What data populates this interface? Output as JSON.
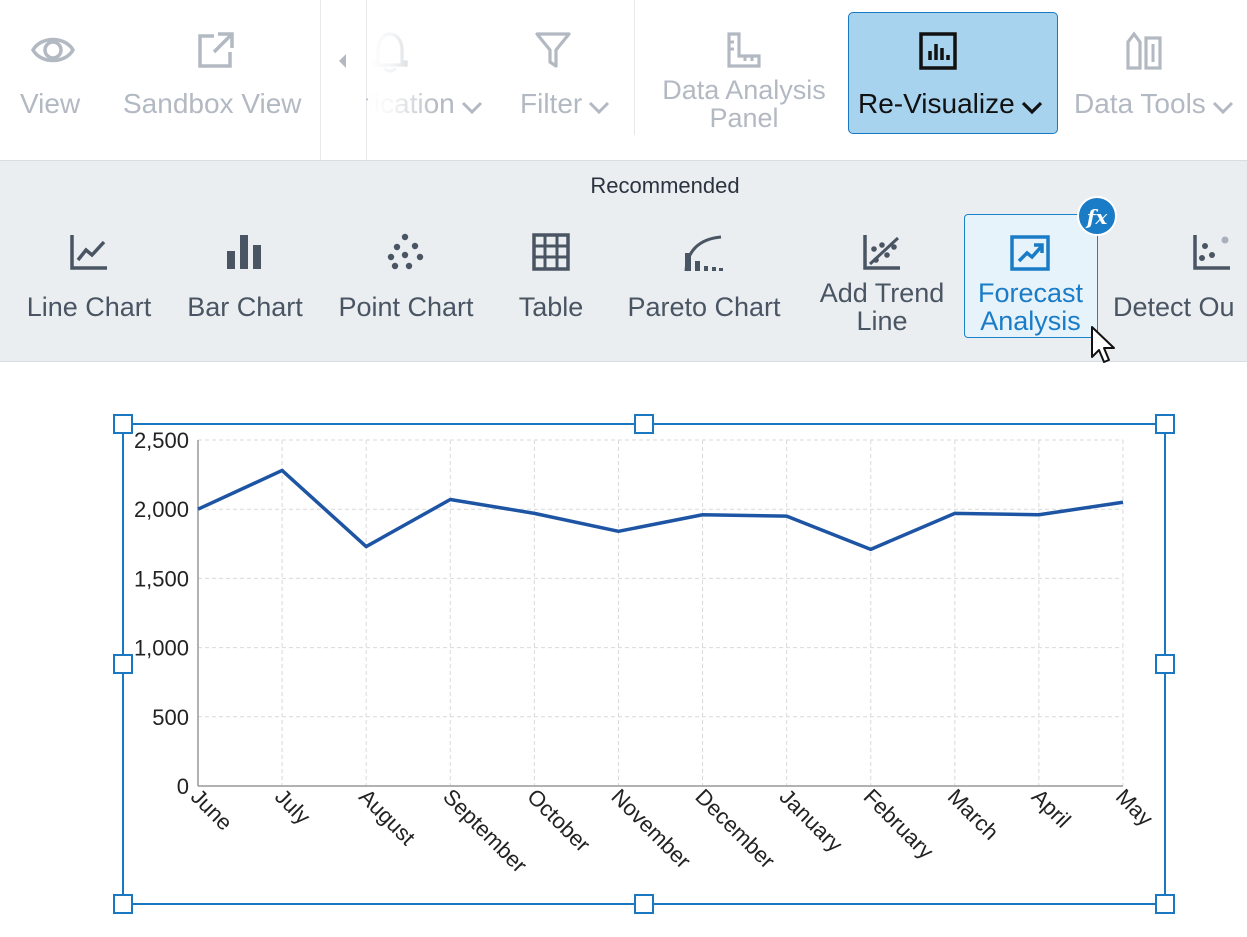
{
  "toolbar": {
    "items": [
      {
        "label": "View",
        "icon": "eye-icon"
      },
      {
        "label": "Sandbox View",
        "icon": "external-link-icon"
      },
      {
        "label": "fication",
        "icon": "bell-icon"
      },
      {
        "label": "Filter",
        "icon": "filter-icon"
      },
      {
        "label_line1": "Data Analysis",
        "label_line2": "Panel",
        "icon": "ruler-icon"
      },
      {
        "label": "Re-Visualize",
        "icon": "bar-chart-box-icon",
        "active": true
      },
      {
        "label": "Data Tools",
        "icon": "data-tools-icon"
      }
    ],
    "accent": "#1a78c2",
    "active_bg": "#a7d3ef"
  },
  "ribbon": {
    "title": "Recommended",
    "items": [
      {
        "label": "Line Chart",
        "icon": "line-chart-icon"
      },
      {
        "label": "Bar Chart",
        "icon": "bar-chart-icon"
      },
      {
        "label": "Point Chart",
        "icon": "point-chart-icon"
      },
      {
        "label": "Table",
        "icon": "table-icon"
      },
      {
        "label": "Pareto Chart",
        "icon": "pareto-chart-icon"
      },
      {
        "label_line1": "Add Trend",
        "label_line2": "Line",
        "icon": "trend-line-icon"
      },
      {
        "label_line1": "Forecast",
        "label_line2": "Analysis",
        "icon": "forecast-icon",
        "selected": true,
        "badge": "fx"
      },
      {
        "label": "Detect Ou",
        "icon": "outlier-icon"
      }
    ]
  },
  "chart_data": {
    "type": "line",
    "categories": [
      "June",
      "July",
      "August",
      "September",
      "October",
      "November",
      "December",
      "January",
      "February",
      "March",
      "April",
      "May"
    ],
    "series": [
      {
        "values": [
          2000,
          2280,
          1730,
          2070,
          1970,
          1840,
          1960,
          1950,
          1710,
          1970,
          1960,
          2050
        ],
        "color": "#1d55a4"
      }
    ],
    "ylim": [
      0,
      2500
    ],
    "yticks": [
      "0",
      "500",
      "1,000",
      "1,500",
      "2,000",
      "2,500"
    ],
    "grid": true,
    "selection_color": "#1a78c2"
  }
}
